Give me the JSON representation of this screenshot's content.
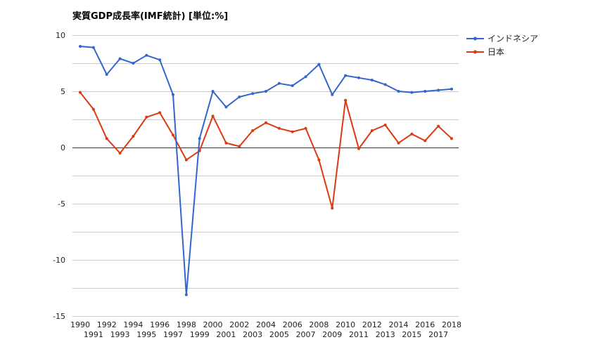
{
  "chart_data": {
    "type": "line",
    "title": "実質GDP成長率(IMF統計) [単位:%]",
    "xlabel": "",
    "ylabel": "",
    "ylim": [
      -15,
      10
    ],
    "yticks": [
      10,
      5,
      0,
      -5,
      -10,
      -15
    ],
    "grid": true,
    "legend_position": "top-right",
    "categories": [
      "1990",
      "1991",
      "1992",
      "1993",
      "1994",
      "1995",
      "1996",
      "1997",
      "1998",
      "1999",
      "2000",
      "2001",
      "2002",
      "2003",
      "2004",
      "2005",
      "2006",
      "2007",
      "2008",
      "2009",
      "2010",
      "2011",
      "2012",
      "2013",
      "2014",
      "2015",
      "2016",
      "2017",
      "2018"
    ],
    "series": [
      {
        "name": "インドネシア",
        "color": "#3366cc",
        "values": [
          9.0,
          8.9,
          6.5,
          7.9,
          7.5,
          8.2,
          7.8,
          4.7,
          -13.1,
          0.8,
          5.0,
          3.6,
          4.5,
          4.8,
          5.0,
          5.7,
          5.5,
          6.3,
          7.4,
          4.7,
          6.4,
          6.2,
          6.0,
          5.6,
          5.0,
          4.9,
          5.0,
          5.1,
          5.2
        ]
      },
      {
        "name": "日本",
        "color": "#dc3912",
        "values": [
          4.9,
          3.4,
          0.8,
          -0.5,
          1.0,
          2.7,
          3.1,
          1.1,
          -1.1,
          -0.3,
          2.8,
          0.4,
          0.1,
          1.5,
          2.2,
          1.7,
          1.4,
          1.7,
          -1.1,
          -5.4,
          4.2,
          -0.1,
          1.5,
          2.0,
          0.4,
          1.2,
          0.6,
          1.9,
          0.8
        ]
      }
    ]
  }
}
